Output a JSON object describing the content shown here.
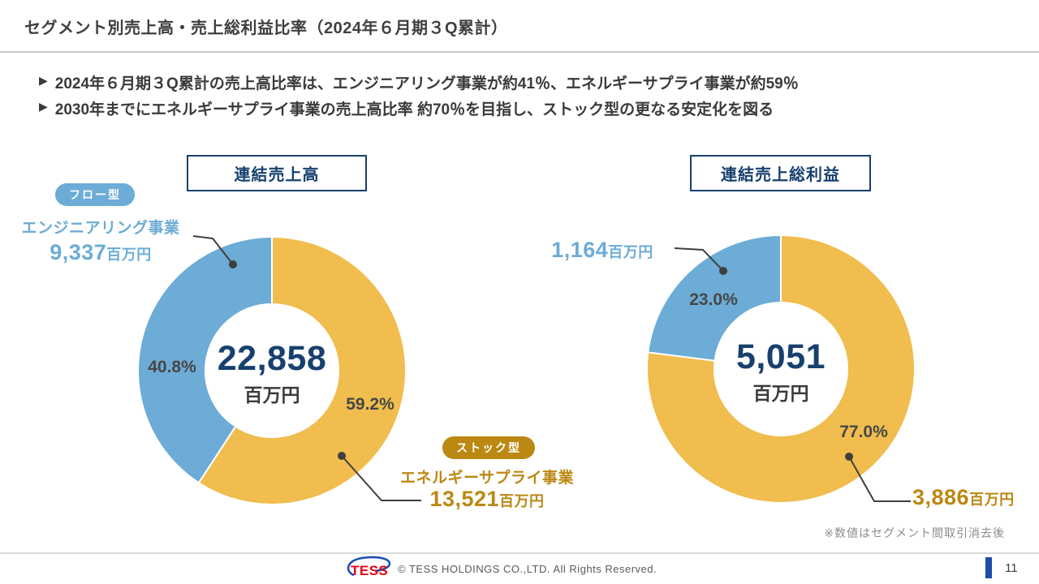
{
  "header": {
    "title": "セグメント別売上高・売上総利益比率（2024年６月期３Q累計）"
  },
  "bullets": [
    "2024年６月期３Q累計の売上高比率は、エンジニアリング事業が約41％、エネルギーサプライ事業が約59％",
    "2030年までにエネルギーサプライ事業の売上高比率 約70％を目指し、ストック型の更なる安定化を図る"
  ],
  "badges": {
    "flow": "フロー型",
    "stock": "ストック型"
  },
  "colors": {
    "blue": "#6cacd6",
    "orange": "#f0bd4e",
    "navy": "#18406f",
    "gold": "#bb8812",
    "leader_line": "#3f3f3f",
    "footer_bar_blue": "#1d4da6",
    "logo_red": "#e60012",
    "logo_blue": "#1c50b5"
  },
  "chart_data": [
    {
      "type": "donut",
      "title": "連結売上高",
      "center_value": "22,858",
      "center_unit": "百万円",
      "legend_position": "outside",
      "segments": [
        {
          "label": "エネルギーサプライ事業",
          "value": 13521,
          "value_label": "13,521",
          "unit": "百万円",
          "pct": 59.2,
          "pct_label": "59.2%",
          "color": "#f0bd4e",
          "type_badge": "ストック型"
        },
        {
          "label": "エンジニアリング事業",
          "value": 9337,
          "value_label": "9,337",
          "unit": "百万円",
          "pct": 40.8,
          "pct_label": "40.8%",
          "color": "#6cacd6",
          "type_badge": "フロー型"
        }
      ]
    },
    {
      "type": "donut",
      "title": "連結売上総利益",
      "center_value": "5,051",
      "center_unit": "百万円",
      "legend_position": "outside",
      "segments": [
        {
          "label": "エネルギーサプライ事業",
          "value": 3886,
          "value_label": "3,886",
          "unit": "百万円",
          "pct": 77.0,
          "pct_label": "77.0%",
          "color": "#f0bd4e",
          "type_badge": "ストック型"
        },
        {
          "label": "エンジニアリング事業",
          "value": 1164,
          "value_label": "1,164",
          "unit": "百万円",
          "pct": 23.0,
          "pct_label": "23.0%",
          "color": "#6cacd6",
          "type_badge": "フロー型"
        }
      ]
    }
  ],
  "note": "※数値はセグメント間取引消去後",
  "footer": {
    "logo_text": "TESS",
    "copyright": "© TESS HOLDINGS CO.,LTD.  All Rights Reserved.",
    "page": "11"
  }
}
